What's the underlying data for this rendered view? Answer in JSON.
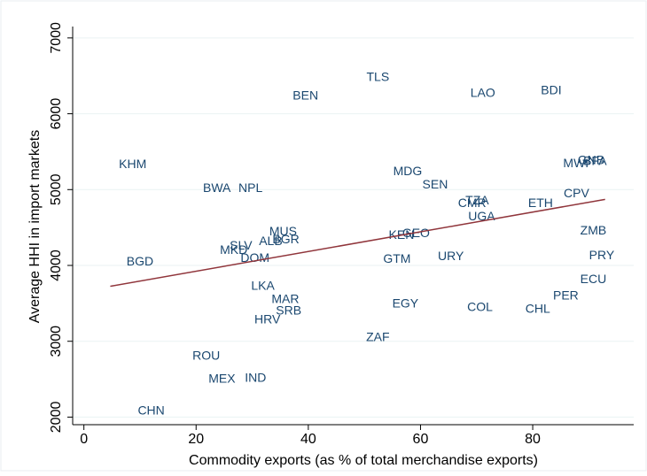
{
  "chart_data": {
    "type": "scatter",
    "x_label": "Commodity exports (as % of total merchandise exports)",
    "y_label": "Average HHI in import markets",
    "point_labels": [
      "TLS",
      "BEN",
      "LAO",
      "BDI",
      "KHM",
      "BWA",
      "NPL",
      "MDG",
      "SEN",
      "MWI",
      "GNB",
      "BFA",
      "CPV",
      "TZA",
      "CMR",
      "ETH",
      "UGA",
      "ZMB",
      "MUS",
      "KEN",
      "GEO",
      "BGR",
      "ALB",
      "SLV",
      "MKD",
      "DOM",
      "BGD",
      "GTM",
      "URY",
      "PRY",
      "LKA",
      "ECU",
      "MAR",
      "PER",
      "SRB",
      "EGY",
      "COL",
      "CHL",
      "HRV",
      "ZAF",
      "ROU",
      "MEX",
      "IND",
      "CHN"
    ],
    "x": [
      52.4,
      39.5,
      71.1,
      83.3,
      8.7,
      23.7,
      29.7,
      57.7,
      62.6,
      87.7,
      90.4,
      91.1,
      87.8,
      70.1,
      69.2,
      81.4,
      70.9,
      90.8,
      35.5,
      56.6,
      59.2,
      36.0,
      33.3,
      28.0,
      26.7,
      30.5,
      10.0,
      55.8,
      65.4,
      92.3,
      31.9,
      90.8,
      35.9,
      85.9,
      36.5,
      57.3,
      70.6,
      80.9,
      32.7,
      52.4,
      21.8,
      24.6,
      30.6,
      12.0
    ],
    "values": [
      6474,
      6228,
      6263,
      6298,
      5327,
      5012,
      5012,
      5234,
      5058,
      5339,
      5380,
      5370,
      4942,
      4848,
      4813,
      4813,
      4637,
      4450,
      4439,
      4392,
      4415,
      4333,
      4310,
      4251,
      4193,
      4088,
      4041,
      4076,
      4111,
      4123,
      3725,
      3807,
      3550,
      3596,
      3398,
      3491,
      3444,
      3421,
      3281,
      3047,
      2801,
      2497,
      2509,
      2076
    ],
    "color": "#1a476f",
    "fit": {
      "x": [
        4.7,
        92.9
      ],
      "y": [
        3725,
        4871
      ],
      "color": "#90353b"
    },
    "xlim": [
      -2,
      98
    ],
    "ylim": [
      1900,
      7150
    ],
    "xticks": [
      0,
      20,
      40,
      60,
      80
    ],
    "yticks": [
      2000,
      3000,
      4000,
      5000,
      6000,
      7000
    ],
    "grid": true
  }
}
